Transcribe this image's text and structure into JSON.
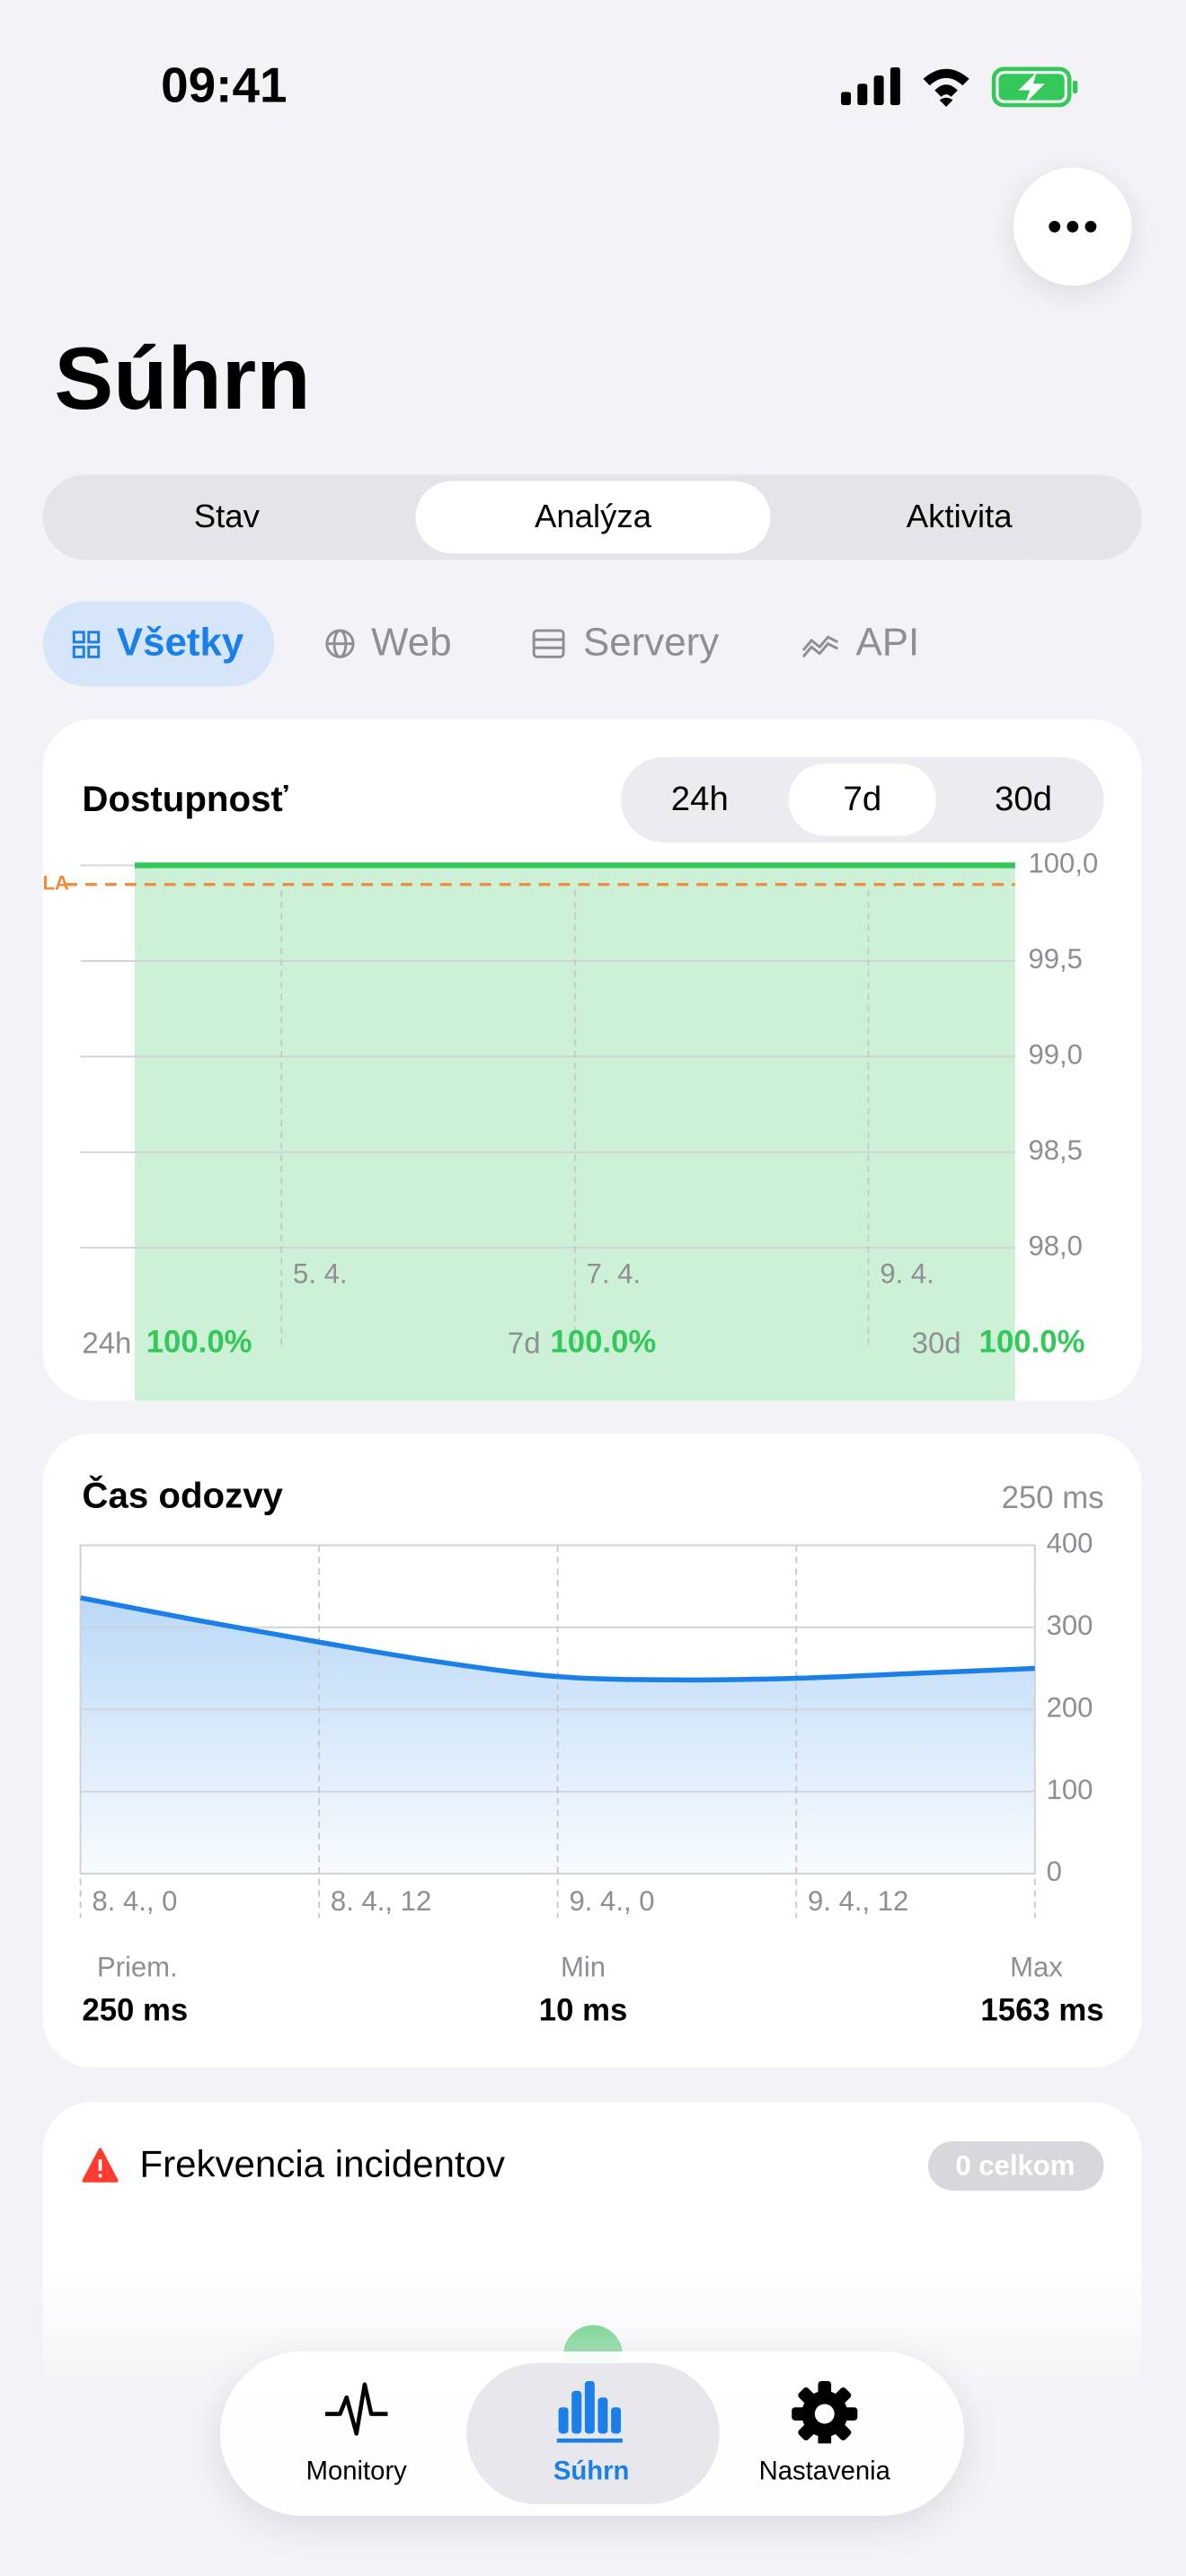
{
  "status_bar": {
    "time": "09:41"
  },
  "header": {
    "title": "Súhrn"
  },
  "segments": [
    "Stav",
    "Analýza",
    "Aktivita"
  ],
  "filters": [
    "Všetky",
    "Web",
    "Servery",
    "API"
  ],
  "chart_data": [
    {
      "type": "area",
      "title": "Dostupnosť",
      "ranges": [
        "24h",
        "7d",
        "30d"
      ],
      "categories": [
        null,
        "5. 4.",
        null,
        "7. 4.",
        null,
        "9. 4.",
        null
      ],
      "series": [
        {
          "name": "Dostupnosť",
          "color": "#34c759",
          "values": [
            100,
            100,
            100,
            100,
            100,
            100,
            100
          ]
        }
      ],
      "ylim": [
        97.2,
        100
      ],
      "yticks": [
        {
          "value": 100,
          "label": "100,0"
        },
        {
          "value": 99.5,
          "label": "99,5"
        },
        {
          "value": 99,
          "label": "99,0"
        },
        {
          "value": 98.5,
          "label": "98,5"
        },
        {
          "value": 98,
          "label": "98,0"
        }
      ],
      "annotation": {
        "label": "SLA",
        "value": 99.9,
        "color": "#f08a3c"
      },
      "summary": [
        {
          "label": "24h",
          "value": "100.0%"
        },
        {
          "label": "7d",
          "value": "100.0%"
        },
        {
          "label": "30d",
          "value": "100.0%"
        }
      ]
    },
    {
      "type": "area",
      "title": "Čas odozvy",
      "subtitle": "250 ms",
      "categories": [
        "8. 4., 0",
        null,
        "8. 4., 12",
        null,
        "9. 4., 0",
        null,
        "9. 4., 12",
        null,
        null
      ],
      "series": [
        {
          "name": "Čas odozvy",
          "color": "#1a7fe6",
          "values": [
            336,
            308,
            282,
            258,
            240,
            236,
            238,
            244,
            250
          ]
        }
      ],
      "ylim": [
        0,
        400
      ],
      "yticks": [
        0,
        100,
        200,
        300,
        400
      ],
      "stats": [
        {
          "label": "Priem.",
          "value": "250 ms"
        },
        {
          "label": "Min",
          "value": "10 ms"
        },
        {
          "label": "Max",
          "value": "1563 ms"
        }
      ]
    }
  ],
  "incidents": {
    "title": "Frekvencia incidentov",
    "badge": "0 celkom"
  },
  "tab_bar": [
    "Monitory",
    "Súhrn",
    "Nastavenia"
  ]
}
